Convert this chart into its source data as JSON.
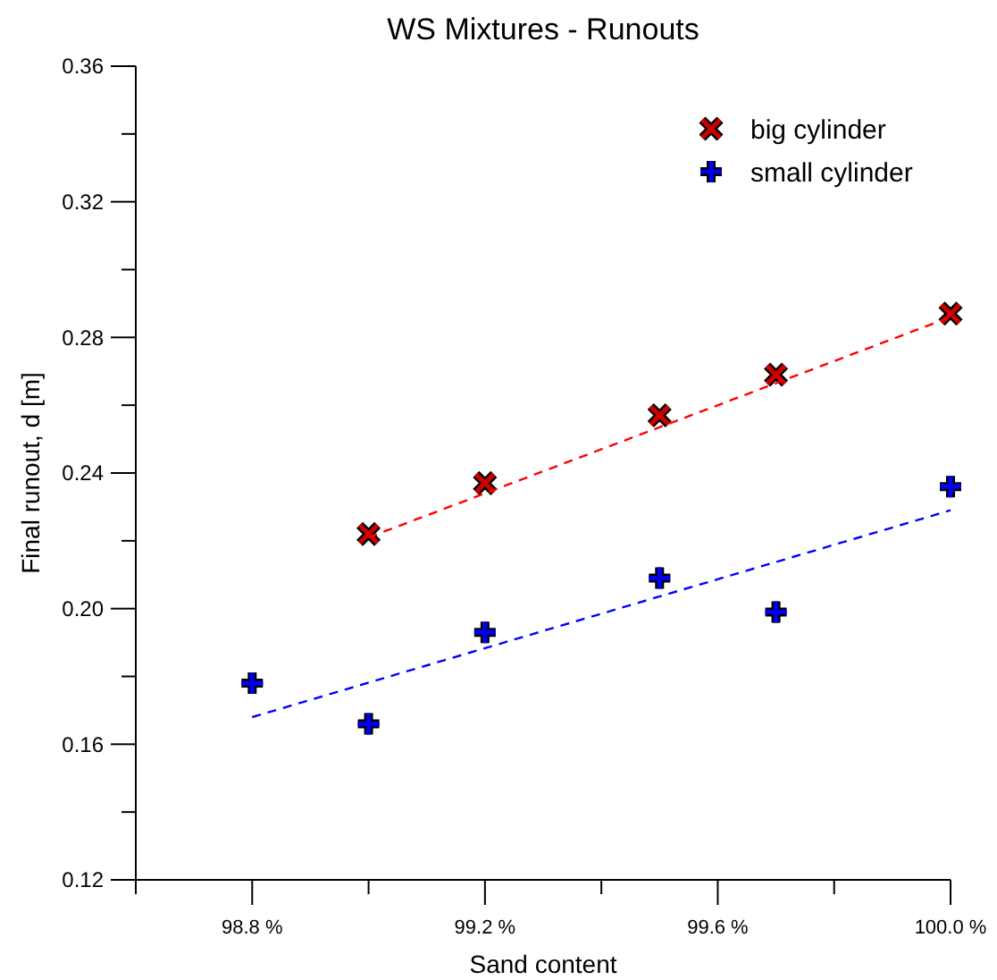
{
  "chart_data": {
    "type": "scatter",
    "title": "WS Mixtures - Runouts",
    "xlabel": "Sand content",
    "ylabel": "Final runout, d [m]",
    "xlim": [
      98.6,
      100.0
    ],
    "xticks": [
      {
        "value": 98.6,
        "label": null
      },
      {
        "value": 98.8,
        "label": "98.8 %"
      },
      {
        "value": 99.0,
        "label": null
      },
      {
        "value": 99.2,
        "label": "99.2 %"
      },
      {
        "value": 99.4,
        "label": null
      },
      {
        "value": 99.6,
        "label": "99.6 %"
      },
      {
        "value": 99.8,
        "label": null
      },
      {
        "value": 100.0,
        "label": "100.0 %"
      }
    ],
    "ylim": [
      0.12,
      0.36
    ],
    "yticks": [
      0.12,
      {
        "value": 0.14,
        "label": null
      },
      0.16,
      {
        "value": 0.18,
        "label": null
      },
      {
        "value": 0.2,
        "label": "0.20"
      },
      {
        "value": 0.22,
        "label": null
      },
      0.24,
      {
        "value": 0.26,
        "label": null
      },
      0.28,
      {
        "value": 0.3,
        "label": null
      },
      0.32,
      {
        "value": 0.34,
        "label": null
      },
      0.36
    ],
    "grid": false,
    "legend": "top right",
    "series": [
      {
        "name": "big cylinder",
        "color": "#cc0000",
        "marker": "cross",
        "x": [
          99.0,
          99.2,
          99.5,
          99.7,
          100.0
        ],
        "values": [
          0.222,
          0.237,
          0.257,
          0.269,
          0.287
        ]
      },
      {
        "name": "small cylinder",
        "color": "#0000ee",
        "marker": "plus",
        "x": [
          98.8,
          99.0,
          99.2,
          99.5,
          99.7,
          100.0
        ],
        "values": [
          0.178,
          0.166,
          0.193,
          0.209,
          0.199,
          0.236
        ]
      },
      {
        "type": "line",
        "color": "#ff0000",
        "line_style": "dashed",
        "marker": "none",
        "x": [
          99.0,
          100.0
        ],
        "values": [
          0.221,
          0.286
        ]
      },
      {
        "type": "line",
        "color": "#0000ff",
        "line_style": "dashed",
        "marker": "none",
        "x": [
          98.8,
          100.0
        ],
        "values": [
          0.168,
          0.229
        ]
      }
    ]
  }
}
